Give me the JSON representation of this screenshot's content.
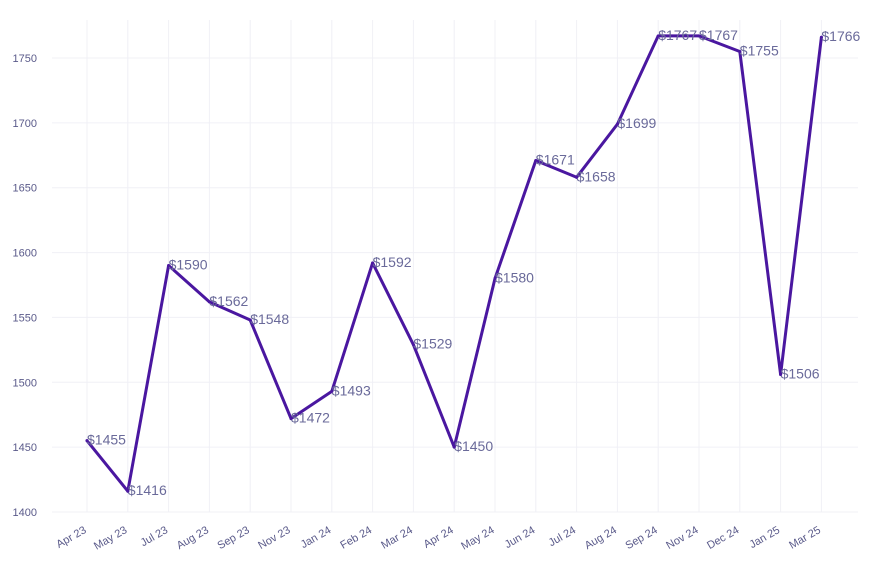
{
  "chart_data": {
    "type": "line",
    "title": "",
    "xlabel": "",
    "ylabel": "",
    "grid": true,
    "legend": "none",
    "ylim": [
      1400,
      1750
    ],
    "yticks": [
      1400,
      1450,
      1500,
      1550,
      1600,
      1650,
      1700,
      1750
    ],
    "categories": [
      "Apr 23",
      "May 23",
      "Jul 23",
      "Aug 23",
      "Sep 23",
      "Nov 23",
      "Jan 24",
      "Feb 24",
      "Mar 24",
      "Apr 24",
      "May 24",
      "Jun 24",
      "Jul 24",
      "Aug 24",
      "Sep 24",
      "Nov 24",
      "Dec 24",
      "Jan 25",
      "Mar 25"
    ],
    "series": [
      {
        "color": "#4a17a0",
        "values": [
          1455,
          1416,
          1590,
          1562,
          1548,
          1472,
          1493,
          1592,
          1529,
          1450,
          1580,
          1671,
          1658,
          1699,
          1767,
          1767,
          1755,
          1506,
          1766
        ],
        "labels": [
          "$1455",
          "$1416",
          "$1590",
          "$1562",
          "$1548",
          "$1472",
          "$1493",
          "$1592",
          "$1529",
          "$1450",
          "$1580",
          "$1671",
          "$1658",
          "$1699",
          "$1767",
          "$1767",
          "$1755",
          "$1506",
          "$1766"
        ]
      }
    ]
  }
}
